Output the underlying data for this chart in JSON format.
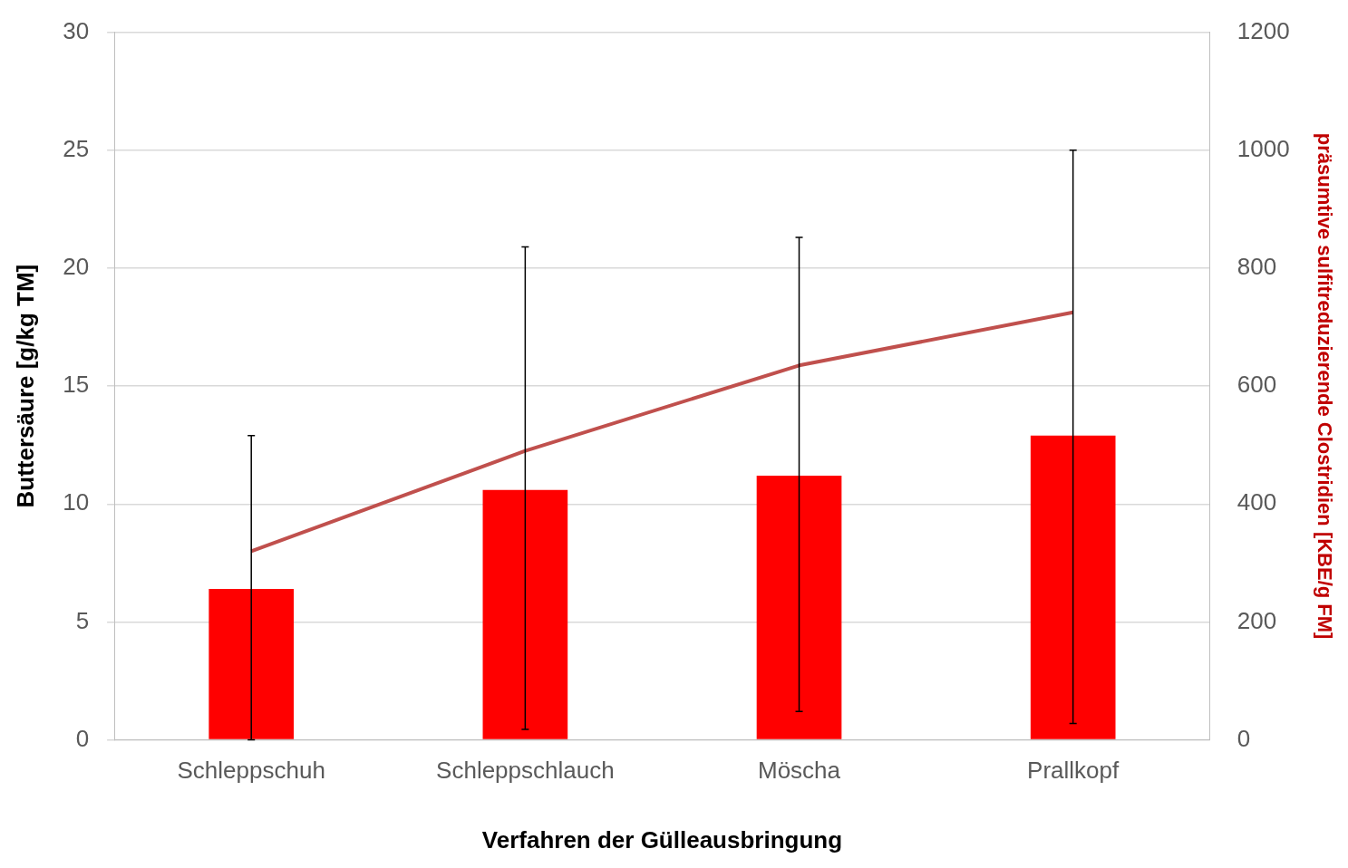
{
  "chart_data": {
    "type": "bar",
    "xlabel": "Verfahren der Gülleausbringung",
    "ylabel": "Buttersäure [g/kg TM]",
    "y2label": "präsumtive sulfitreduzierende Clostridien [KBE/g FM]",
    "categories": [
      "Schleppschuh",
      "Schleppschlauch",
      "Möscha",
      "Prallkopf"
    ],
    "series": [
      {
        "type": "bar",
        "color": "#ff0000",
        "values": [
          6.4,
          10.6,
          11.2,
          12.9
        ],
        "errors": [
          [
            0,
            12.9
          ],
          [
            0.45,
            20.9
          ],
          [
            1.2,
            21.3
          ],
          [
            0.7,
            25.0
          ]
        ]
      },
      {
        "type": "line",
        "axis": "y2",
        "color": "#c0504d",
        "values": [
          320,
          490,
          635,
          725
        ]
      }
    ],
    "ylim": [
      0,
      30
    ],
    "yticks": [
      0,
      5,
      10,
      15,
      20,
      25,
      30
    ],
    "y2lim": [
      0,
      1200
    ],
    "y2ticks": [
      0,
      200,
      400,
      600,
      800,
      1000,
      1200
    ],
    "grid": "y",
    "legend": false,
    "marker": "none"
  }
}
